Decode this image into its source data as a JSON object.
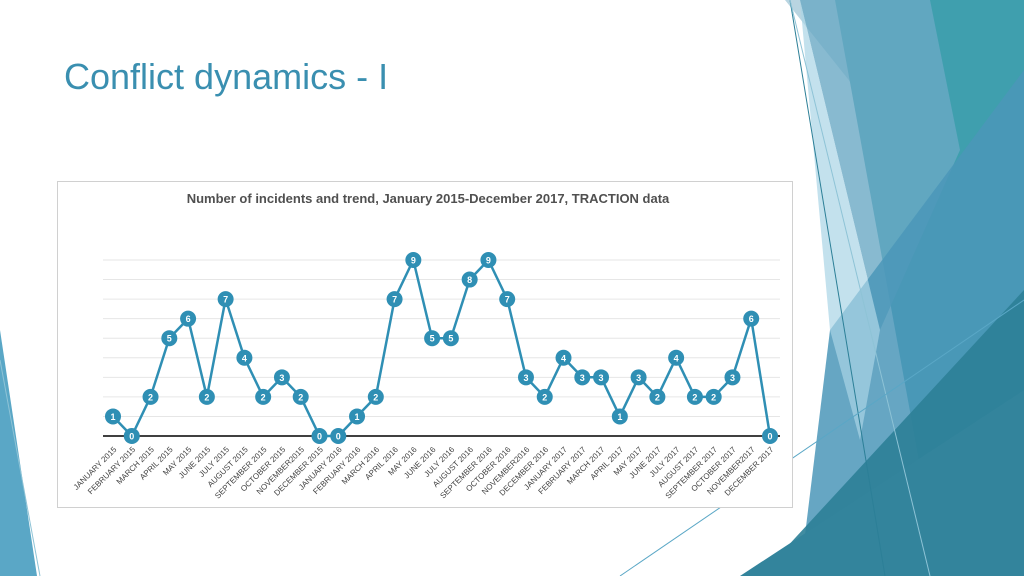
{
  "slide": {
    "title": "Conflict dynamics - I"
  },
  "colors": {
    "title": "#3a8fb0",
    "line": "#2f8fb4",
    "deco_dark": "#2c7f97",
    "deco_mid": "#5aa7c6",
    "deco_light": "#a9d4e6"
  },
  "chart_data": {
    "type": "line",
    "title": "Number of incidents and trend, January 2015-December 2017, TRACTION data",
    "xlabel": "",
    "ylabel": "",
    "ylim": [
      0,
      9
    ],
    "grid": true,
    "legend": "none",
    "categories": [
      "JANUARY 2015",
      "FEBRUARY 2015",
      "MARCH 2015",
      "APRIL 2015",
      "MAY 2015",
      "JUNE 2015",
      "JULY 2015",
      "AUGUST 2015",
      "SEPTEMBER 2015",
      "OCTOBER 2015",
      "NOVEMBER2015",
      "DECEMBER 2015",
      "JANUARY 2016",
      "FEBRUARY 2016",
      "MARCH 2016",
      "APRIL 2016",
      "MAY 2016",
      "JUNE 2016",
      "JULY 2016",
      "AUGUST 2016",
      "SEPTEMBER 2016",
      "OCTOBER 2016",
      "NOVEMBER2016",
      "DECEMBER 2016",
      "JANUARY 2017",
      "FEBRUARY 2017",
      "MARCH 2017",
      "APRIL 2017",
      "MAY 2017",
      "JUNE 2017",
      "JULY 2017",
      "AUGUST 2017",
      "SEPTEMBER 2017",
      "OCTOBER 2017",
      "NOVEMBER2017",
      "DECEMBER 2017"
    ],
    "values": [
      1,
      0,
      2,
      5,
      6,
      2,
      7,
      4,
      2,
      3,
      2,
      0,
      0,
      1,
      2,
      7,
      9,
      5,
      5,
      8,
      9,
      7,
      3,
      2,
      4,
      3,
      3,
      1,
      3,
      2,
      4,
      2,
      2,
      3,
      6,
      0
    ]
  }
}
